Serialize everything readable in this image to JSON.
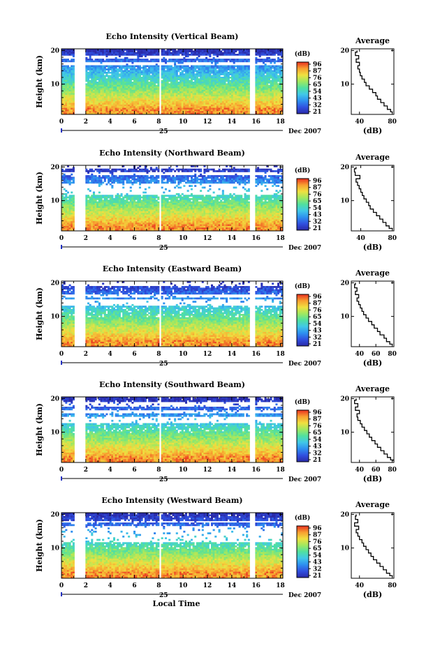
{
  "chart_data": [
    {
      "type": "heatmap",
      "title": "Echo Intensity (Vertical Beam)",
      "ylabel": "Height (km)",
      "xticks": [
        "0",
        "2",
        "4",
        "6",
        "8",
        "10",
        "12",
        "14",
        "16",
        "18"
      ],
      "yticks": [
        "10",
        "20"
      ],
      "day_label": "25",
      "date_label": "Dec 2007",
      "colorbar": {
        "unit": "(dB)",
        "ticks": [
          "96",
          "87",
          "76",
          "65",
          "54",
          "43",
          "32",
          "21"
        ]
      },
      "profile": {
        "title": "Average",
        "xlabel": "(dB)",
        "xticks": [
          "40",
          "80"
        ],
        "yticks": [
          "10",
          "20"
        ],
        "xlim": [
          30,
          82
        ],
        "height_km": [
          1.5,
          2,
          3,
          4,
          5,
          6,
          7,
          8,
          9,
          10,
          11,
          12,
          13,
          14,
          15,
          16,
          17,
          18,
          19,
          20
        ],
        "value_db": [
          80,
          78,
          74,
          70,
          66,
          62,
          60,
          56,
          52,
          48,
          46,
          43,
          41,
          40,
          38,
          40,
          36,
          39,
          35,
          37
        ]
      }
    },
    {
      "type": "heatmap",
      "title": "Echo Intensity (Northward Beam)",
      "ylabel": "Height (km)",
      "xticks": [
        "0",
        "2",
        "4",
        "6",
        "8",
        "10",
        "12",
        "14",
        "16",
        "18"
      ],
      "yticks": [
        "10",
        "20"
      ],
      "day_label": "25",
      "date_label": "Dec 2007",
      "colorbar": {
        "unit": "(dB)",
        "ticks": [
          "96",
          "87",
          "76",
          "65",
          "54",
          "43",
          "32",
          "21"
        ]
      },
      "profile": {
        "title": "Average",
        "xlabel": "(dB)",
        "xticks": [
          "40",
          "80"
        ],
        "yticks": [
          "10",
          "20"
        ],
        "xlim": [
          28,
          82
        ],
        "height_km": [
          1.5,
          2,
          3,
          4,
          5,
          6,
          7,
          8,
          9,
          10,
          11,
          12,
          13,
          14,
          15,
          16,
          17,
          18,
          19,
          20
        ],
        "value_db": [
          80,
          76,
          72,
          68,
          64,
          60,
          56,
          52,
          50,
          47,
          44,
          42,
          40,
          38,
          36,
          34,
          39,
          33,
          32,
          34
        ]
      }
    },
    {
      "type": "heatmap",
      "title": "Echo Intensity (Eastward Beam)",
      "ylabel": "Height (km)",
      "xticks": [
        "0",
        "2",
        "4",
        "6",
        "8",
        "10",
        "12",
        "14",
        "16",
        "18"
      ],
      "yticks": [
        "10",
        "20"
      ],
      "day_label": "25",
      "date_label": "Dec 2007",
      "colorbar": {
        "unit": "(dB)",
        "ticks": [
          "96",
          "87",
          "76",
          "65",
          "54",
          "43",
          "32",
          "21"
        ]
      },
      "profile": {
        "title": "Average",
        "xlabel": "(dB)",
        "xticks": [
          "40",
          "60",
          "80"
        ],
        "yticks": [
          "10",
          "20"
        ],
        "xlim": [
          30,
          82
        ],
        "height_km": [
          1.5,
          2,
          3,
          4,
          5,
          6,
          7,
          8,
          9,
          10,
          11,
          12,
          13,
          14,
          15,
          16,
          17,
          18,
          19,
          20
        ],
        "value_db": [
          80,
          77,
          73,
          70,
          65,
          62,
          58,
          55,
          51,
          48,
          45,
          43,
          41,
          39,
          37,
          39,
          35,
          37,
          34,
          35
        ]
      }
    },
    {
      "type": "heatmap",
      "title": "Echo Intensity (Southward Beam)",
      "ylabel": "Height (km)",
      "xticks": [
        "0",
        "2",
        "4",
        "6",
        "8",
        "10",
        "12",
        "14",
        "16",
        "18"
      ],
      "yticks": [
        "10",
        "20"
      ],
      "day_label": "25",
      "date_label": "Dec 2007",
      "colorbar": {
        "unit": "(dB)",
        "ticks": [
          "96",
          "87",
          "76",
          "65",
          "54",
          "43",
          "32",
          "21"
        ]
      },
      "profile": {
        "title": "Average",
        "xlabel": "(dB)",
        "xticks": [
          "40",
          "60",
          "80"
        ],
        "yticks": [
          "10",
          "20"
        ],
        "xlim": [
          30,
          82
        ],
        "height_km": [
          1.5,
          2,
          3,
          4,
          5,
          6,
          7,
          8,
          9,
          10,
          11,
          12,
          13,
          14,
          15,
          16,
          17,
          18,
          19,
          20
        ],
        "value_db": [
          81,
          78,
          74,
          70,
          66,
          62,
          59,
          55,
          52,
          49,
          46,
          43,
          41,
          38,
          37,
          40,
          35,
          38,
          34,
          36
        ]
      }
    },
    {
      "type": "heatmap",
      "title": "Echo Intensity (Westward Beam)",
      "ylabel": "Height (km)",
      "xlabel": "Local Time",
      "xticks": [
        "0",
        "2",
        "4",
        "6",
        "8",
        "10",
        "12",
        "14",
        "16",
        "18"
      ],
      "yticks": [
        "10",
        "20"
      ],
      "day_label": "25",
      "date_label": "Dec 2007",
      "colorbar": {
        "unit": "(dB)",
        "ticks": [
          "96",
          "87",
          "76",
          "65",
          "54",
          "43",
          "32",
          "21"
        ]
      },
      "profile": {
        "title": "Average",
        "xlabel": "(dB)",
        "xticks": [
          "40",
          "80"
        ],
        "yticks": [
          "10",
          "20"
        ],
        "xlim": [
          30,
          82
        ],
        "height_km": [
          1.5,
          2,
          3,
          4,
          5,
          6,
          7,
          8,
          9,
          10,
          11,
          12,
          13,
          14,
          15,
          16,
          17,
          18,
          19,
          20
        ],
        "value_db": [
          80,
          77,
          73,
          69,
          65,
          61,
          57,
          54,
          51,
          48,
          45,
          43,
          40,
          38,
          36,
          39,
          34,
          38,
          35,
          36
        ]
      }
    }
  ],
  "colors": {
    "scale": [
      "#2a2aa8",
      "#3050e0",
      "#2e90f0",
      "#40c8e8",
      "#50e0a0",
      "#a0e860",
      "#f0e040",
      "#f8a030",
      "#e83020"
    ],
    "data_gaps_hours": [
      [
        1.1,
        1.9
      ],
      [
        8.0,
        8.15
      ],
      [
        15.4,
        15.9
      ]
    ]
  }
}
